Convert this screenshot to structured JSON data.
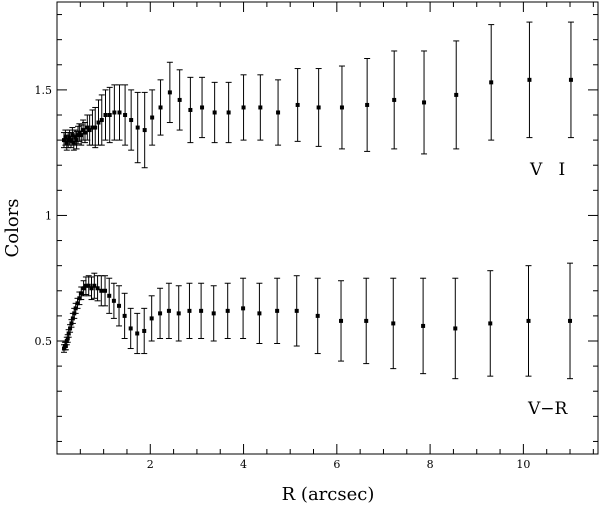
{
  "chart_data": {
    "type": "scatter",
    "xlabel": "R (arcsec)",
    "ylabel": "Colors",
    "xlim": [
      0.0,
      11.6
    ],
    "ylim": [
      0.05,
      1.85
    ],
    "x_ticks": [
      2,
      4,
      6,
      8,
      10
    ],
    "x_tick_labels": [
      "2",
      "4",
      "6",
      "8",
      "10"
    ],
    "y_ticks": [
      0.5,
      1,
      1.5
    ],
    "y_tick_labels": [
      "0.5",
      "1",
      "1.5"
    ],
    "grid": false,
    "legend": "none",
    "series": [
      {
        "name": "V I",
        "points": [
          {
            "x": 0.15,
            "y": 1.3,
            "err": 0.03
          },
          {
            "x": 0.18,
            "y": 1.31,
            "err": 0.03
          },
          {
            "x": 0.21,
            "y": 1.29,
            "err": 0.03
          },
          {
            "x": 0.24,
            "y": 1.3,
            "err": 0.03
          },
          {
            "x": 0.27,
            "y": 1.31,
            "err": 0.03
          },
          {
            "x": 0.3,
            "y": 1.3,
            "err": 0.03
          },
          {
            "x": 0.33,
            "y": 1.32,
            "err": 0.03
          },
          {
            "x": 0.36,
            "y": 1.29,
            "err": 0.03
          },
          {
            "x": 0.39,
            "y": 1.31,
            "err": 0.03
          },
          {
            "x": 0.42,
            "y": 1.3,
            "err": 0.035
          },
          {
            "x": 0.45,
            "y": 1.32,
            "err": 0.035
          },
          {
            "x": 0.48,
            "y": 1.33,
            "err": 0.035
          },
          {
            "x": 0.52,
            "y": 1.32,
            "err": 0.04
          },
          {
            "x": 0.56,
            "y": 1.34,
            "err": 0.04
          },
          {
            "x": 0.6,
            "y": 1.33,
            "err": 0.04
          },
          {
            "x": 0.65,
            "y": 1.35,
            "err": 0.05
          },
          {
            "x": 0.7,
            "y": 1.34,
            "err": 0.06
          },
          {
            "x": 0.76,
            "y": 1.35,
            "err": 0.07
          },
          {
            "x": 0.82,
            "y": 1.35,
            "err": 0.08
          },
          {
            "x": 0.89,
            "y": 1.37,
            "err": 0.09
          },
          {
            "x": 0.96,
            "y": 1.38,
            "err": 0.1
          },
          {
            "x": 1.04,
            "y": 1.4,
            "err": 0.1
          },
          {
            "x": 1.13,
            "y": 1.4,
            "err": 0.11
          },
          {
            "x": 1.23,
            "y": 1.41,
            "err": 0.11
          },
          {
            "x": 1.34,
            "y": 1.41,
            "err": 0.11
          },
          {
            "x": 1.46,
            "y": 1.4,
            "err": 0.12
          },
          {
            "x": 1.59,
            "y": 1.38,
            "err": 0.12
          },
          {
            "x": 1.73,
            "y": 1.35,
            "err": 0.14
          },
          {
            "x": 1.88,
            "y": 1.34,
            "err": 0.15
          },
          {
            "x": 2.04,
            "y": 1.39,
            "err": 0.11
          },
          {
            "x": 2.22,
            "y": 1.43,
            "err": 0.11
          },
          {
            "x": 2.42,
            "y": 1.49,
            "err": 0.12
          },
          {
            "x": 2.63,
            "y": 1.46,
            "err": 0.12
          },
          {
            "x": 2.86,
            "y": 1.42,
            "err": 0.13
          },
          {
            "x": 3.11,
            "y": 1.43,
            "err": 0.12
          },
          {
            "x": 3.38,
            "y": 1.41,
            "err": 0.12
          },
          {
            "x": 3.68,
            "y": 1.41,
            "err": 0.12
          },
          {
            "x": 4.0,
            "y": 1.43,
            "err": 0.13
          },
          {
            "x": 4.36,
            "y": 1.43,
            "err": 0.13
          },
          {
            "x": 4.74,
            "y": 1.41,
            "err": 0.13
          },
          {
            "x": 5.16,
            "y": 1.44,
            "err": 0.145
          },
          {
            "x": 5.61,
            "y": 1.43,
            "err": 0.155
          },
          {
            "x": 6.11,
            "y": 1.43,
            "err": 0.165
          },
          {
            "x": 6.65,
            "y": 1.44,
            "err": 0.185
          },
          {
            "x": 7.23,
            "y": 1.46,
            "err": 0.195
          },
          {
            "x": 7.87,
            "y": 1.45,
            "err": 0.205
          },
          {
            "x": 8.56,
            "y": 1.48,
            "err": 0.215
          },
          {
            "x": 9.31,
            "y": 1.53,
            "err": 0.23
          },
          {
            "x": 10.13,
            "y": 1.54,
            "err": 0.23
          },
          {
            "x": 11.02,
            "y": 1.54,
            "err": 0.23
          }
        ]
      },
      {
        "name": "V−R",
        "points": [
          {
            "x": 0.15,
            "y": 0.47,
            "err": 0.015
          },
          {
            "x": 0.17,
            "y": 0.48,
            "err": 0.015
          },
          {
            "x": 0.19,
            "y": 0.48,
            "err": 0.015
          },
          {
            "x": 0.21,
            "y": 0.5,
            "err": 0.015
          },
          {
            "x": 0.23,
            "y": 0.51,
            "err": 0.015
          },
          {
            "x": 0.25,
            "y": 0.53,
            "err": 0.015
          },
          {
            "x": 0.28,
            "y": 0.55,
            "err": 0.015
          },
          {
            "x": 0.31,
            "y": 0.57,
            "err": 0.015
          },
          {
            "x": 0.34,
            "y": 0.59,
            "err": 0.02
          },
          {
            "x": 0.37,
            "y": 0.61,
            "err": 0.02
          },
          {
            "x": 0.4,
            "y": 0.63,
            "err": 0.02
          },
          {
            "x": 0.44,
            "y": 0.65,
            "err": 0.02
          },
          {
            "x": 0.48,
            "y": 0.67,
            "err": 0.025
          },
          {
            "x": 0.52,
            "y": 0.69,
            "err": 0.025
          },
          {
            "x": 0.57,
            "y": 0.71,
            "err": 0.03
          },
          {
            "x": 0.62,
            "y": 0.72,
            "err": 0.035
          },
          {
            "x": 0.68,
            "y": 0.72,
            "err": 0.04
          },
          {
            "x": 0.74,
            "y": 0.71,
            "err": 0.045
          },
          {
            "x": 0.8,
            "y": 0.72,
            "err": 0.05
          },
          {
            "x": 0.87,
            "y": 0.71,
            "err": 0.05
          },
          {
            "x": 0.95,
            "y": 0.7,
            "err": 0.06
          },
          {
            "x": 1.03,
            "y": 0.7,
            "err": 0.06
          },
          {
            "x": 1.12,
            "y": 0.68,
            "err": 0.07
          },
          {
            "x": 1.22,
            "y": 0.66,
            "err": 0.07
          },
          {
            "x": 1.33,
            "y": 0.64,
            "err": 0.08
          },
          {
            "x": 1.45,
            "y": 0.6,
            "err": 0.09
          },
          {
            "x": 1.58,
            "y": 0.55,
            "err": 0.08
          },
          {
            "x": 1.72,
            "y": 0.53,
            "err": 0.08
          },
          {
            "x": 1.87,
            "y": 0.54,
            "err": 0.09
          },
          {
            "x": 2.03,
            "y": 0.59,
            "err": 0.09
          },
          {
            "x": 2.21,
            "y": 0.61,
            "err": 0.1
          },
          {
            "x": 2.4,
            "y": 0.62,
            "err": 0.11
          },
          {
            "x": 2.61,
            "y": 0.61,
            "err": 0.11
          },
          {
            "x": 2.84,
            "y": 0.62,
            "err": 0.11
          },
          {
            "x": 3.09,
            "y": 0.62,
            "err": 0.11
          },
          {
            "x": 3.36,
            "y": 0.61,
            "err": 0.11
          },
          {
            "x": 3.66,
            "y": 0.62,
            "err": 0.11
          },
          {
            "x": 3.99,
            "y": 0.63,
            "err": 0.12
          },
          {
            "x": 4.34,
            "y": 0.61,
            "err": 0.12
          },
          {
            "x": 4.72,
            "y": 0.62,
            "err": 0.13
          },
          {
            "x": 5.14,
            "y": 0.62,
            "err": 0.14
          },
          {
            "x": 5.59,
            "y": 0.6,
            "err": 0.15
          },
          {
            "x": 6.09,
            "y": 0.58,
            "err": 0.16
          },
          {
            "x": 6.63,
            "y": 0.58,
            "err": 0.17
          },
          {
            "x": 7.21,
            "y": 0.57,
            "err": 0.18
          },
          {
            "x": 7.85,
            "y": 0.56,
            "err": 0.19
          },
          {
            "x": 8.54,
            "y": 0.55,
            "err": 0.2
          },
          {
            "x": 9.29,
            "y": 0.57,
            "err": 0.21
          },
          {
            "x": 10.11,
            "y": 0.58,
            "err": 0.22
          },
          {
            "x": 11.0,
            "y": 0.58,
            "err": 0.23
          }
        ]
      }
    ],
    "annotations": [
      "V   I",
      "V−R"
    ]
  }
}
